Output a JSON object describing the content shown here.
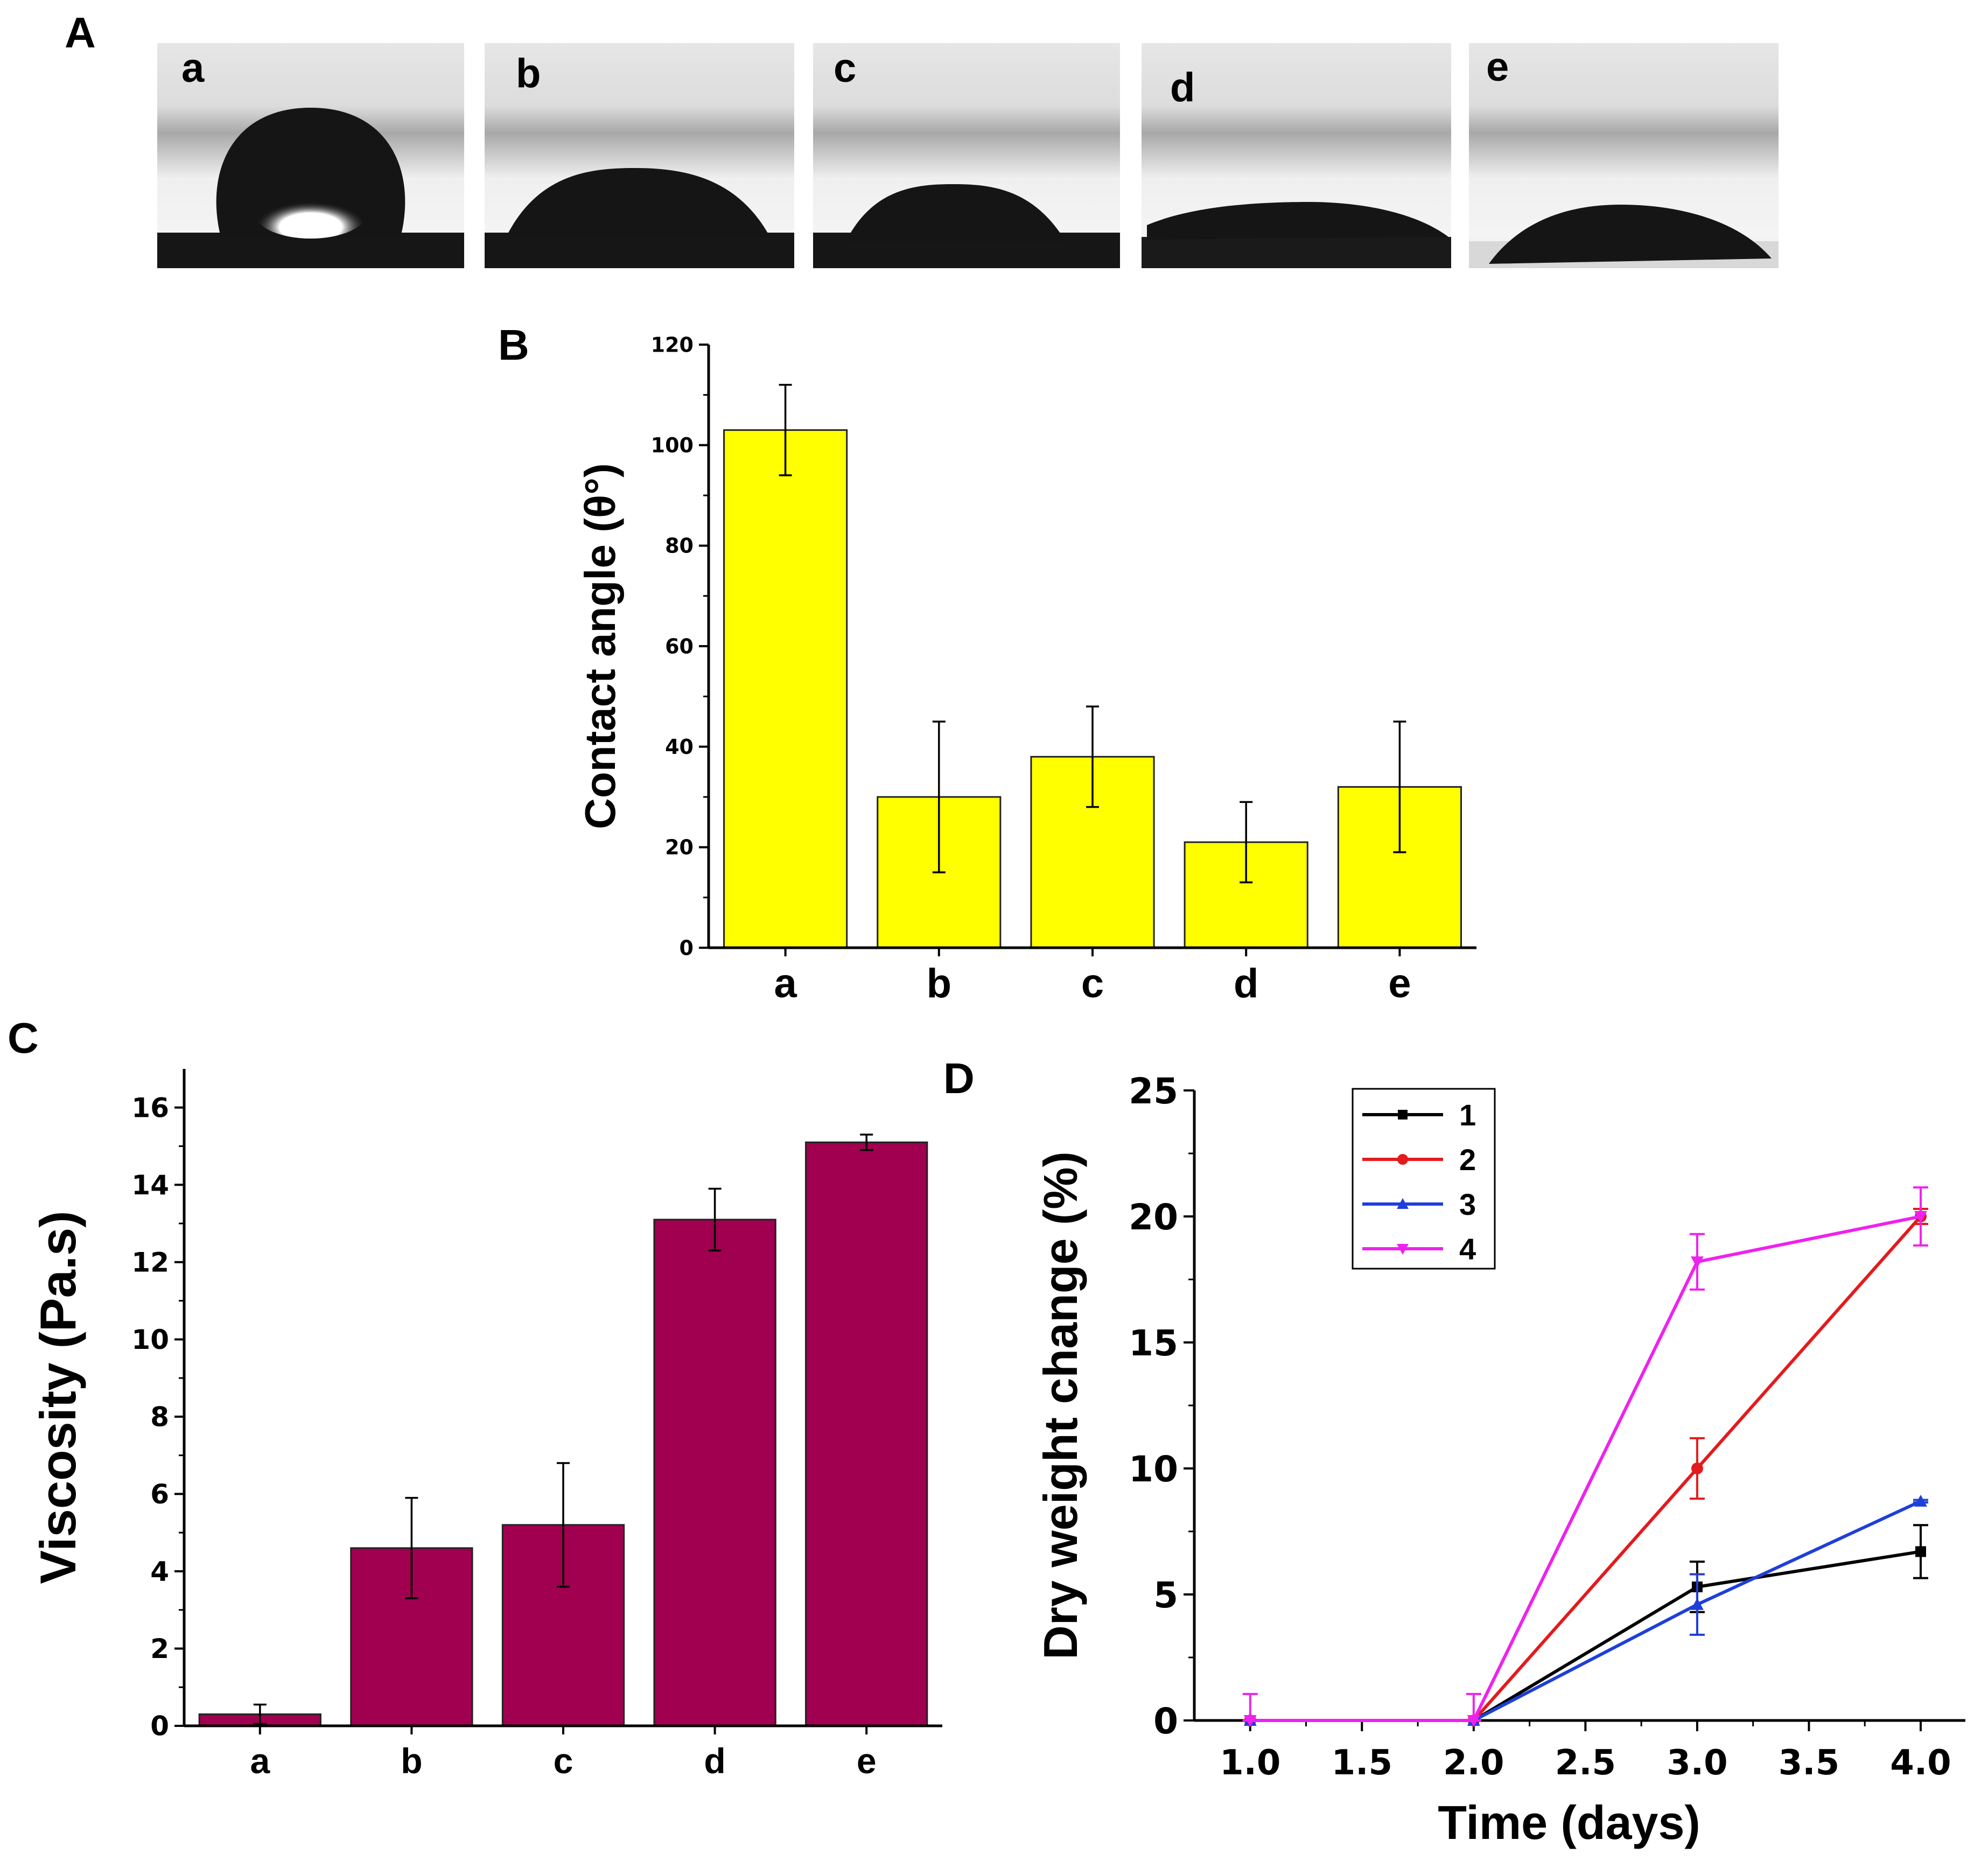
{
  "panel_labels": {
    "A": "A",
    "B": "B",
    "C": "C",
    "D": "D"
  },
  "colors": {
    "panelB_bar": "#ffff00",
    "panelC_bar": "#a0004f",
    "series1": "#000000",
    "series2": "#e41a1c",
    "series3": "#1f3fd9",
    "series4": "#ee22ee"
  },
  "photos": [
    {
      "label": "a",
      "droplet": "high-contact-angle droplet"
    },
    {
      "label": "b",
      "droplet": "spread droplet"
    },
    {
      "label": "c",
      "droplet": "spread droplet"
    },
    {
      "label": "d",
      "droplet": "flat droplet"
    },
    {
      "label": "e",
      "droplet": "flat droplet"
    }
  ],
  "chart_data": [
    {
      "panel": "B",
      "type": "bar",
      "title": "",
      "xlabel": "",
      "ylabel": "Contact angle (θ°)",
      "categories": [
        "a",
        "b",
        "c",
        "d",
        "e"
      ],
      "values": [
        103,
        30,
        38,
        21,
        32
      ],
      "errors": [
        9,
        15,
        10,
        8,
        13
      ],
      "ylim": [
        0,
        120
      ],
      "yticks": [
        0,
        20,
        40,
        60,
        80,
        100,
        120
      ]
    },
    {
      "panel": "C",
      "type": "bar",
      "title": "",
      "xlabel": "",
      "ylabel": "Viscosity (Pa.s)",
      "categories": [
        "a",
        "b",
        "c",
        "d",
        "e"
      ],
      "values": [
        0.3,
        4.6,
        5.2,
        13.1,
        15.1
      ],
      "errors": [
        0.25,
        1.3,
        1.6,
        0.8,
        0.2
      ],
      "ylim": [
        0,
        17
      ],
      "yticks": [
        0,
        2,
        4,
        6,
        8,
        10,
        12,
        14,
        16
      ]
    },
    {
      "panel": "D",
      "type": "line",
      "title": "",
      "xlabel": "Time (days)",
      "ylabel": "Dry weight change (%)",
      "xlim": [
        0.75,
        4.2
      ],
      "ylim": [
        0,
        25
      ],
      "xticks": [
        "1.0",
        "1.5",
        "2.0",
        "2.5",
        "3.0",
        "3.5",
        "4.0"
      ],
      "yticks": [
        0,
        5,
        10,
        15,
        20,
        25
      ],
      "legend_position": "top-left",
      "series": [
        {
          "name": "1",
          "marker": "square",
          "x": [
            1.0,
            2.0,
            3.0,
            4.0
          ],
          "y": [
            0,
            0,
            5.3,
            6.7
          ],
          "errors": [
            0,
            0,
            1.0,
            1.05
          ]
        },
        {
          "name": "2",
          "marker": "circle",
          "x": [
            1.0,
            2.0,
            3.0,
            4.0
          ],
          "y": [
            0,
            0,
            10.0,
            20.0
          ],
          "errors": [
            0,
            0,
            1.2,
            0.3
          ]
        },
        {
          "name": "3",
          "marker": "triangle-up",
          "x": [
            1.0,
            2.0,
            3.0,
            4.0
          ],
          "y": [
            0,
            0,
            4.6,
            8.7
          ],
          "errors": [
            0,
            0,
            1.2,
            0.05
          ]
        },
        {
          "name": "4",
          "marker": "triangle-down",
          "x": [
            1.0,
            2.0,
            3.0,
            4.0
          ],
          "y": [
            0,
            0,
            18.2,
            20.0
          ],
          "errors": [
            1.05,
            1.05,
            1.1,
            1.15
          ]
        }
      ]
    }
  ]
}
